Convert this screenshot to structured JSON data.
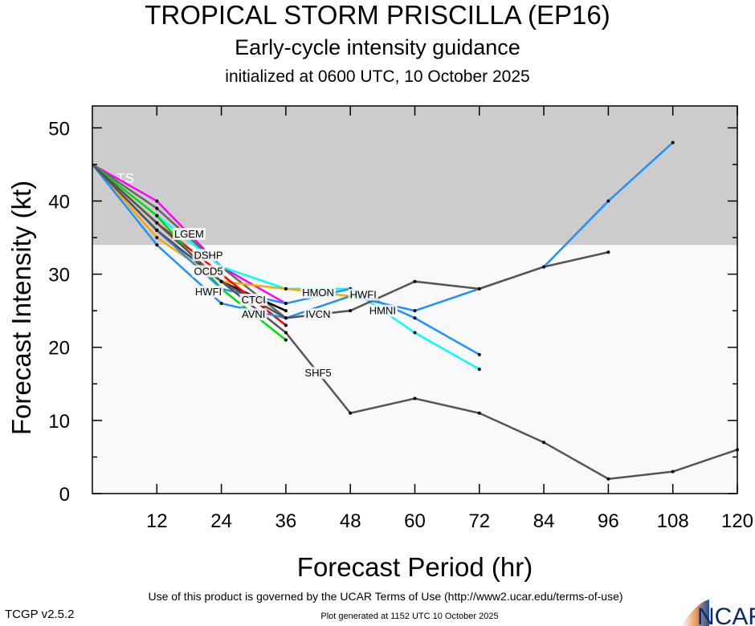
{
  "title": "TROPICAL STORM PRISCILLA (EP16)",
  "subtitle": "Early-cycle intensity guidance",
  "initialized": "initialized at 0600 UTC, 10 October 2025",
  "footer_terms": "Use of this product is governed by the UCAR Terms of Use (http://www2.ucar.edu/terms-of-use)",
  "footer_generated": "Plot generated at 1152 UTC   10 October 2025",
  "version": "TCGP v2.5.2",
  "logo_text": "NCAR",
  "chart_data": {
    "type": "line",
    "xlabel": "Forecast Period (hr)",
    "ylabel": "Forecast Intensity (kt)",
    "xlim": [
      0,
      120
    ],
    "ylim": [
      0,
      53
    ],
    "xticks": [
      12,
      24,
      36,
      48,
      60,
      72,
      84,
      96,
      108,
      120
    ],
    "yticks": [
      0,
      10,
      20,
      30,
      40,
      50
    ],
    "band": {
      "label": "TS",
      "from": 34,
      "to": 53,
      "color": "#cccccc"
    },
    "background": "#f9f9f9",
    "series": [
      {
        "name": "LGEM",
        "color": "#ff00ff",
        "x": [
          0,
          12,
          24,
          36
        ],
        "y": [
          45,
          40,
          31,
          26
        ],
        "label_seg": 1
      },
      {
        "name": "DSHP",
        "color": "#666666",
        "x": [
          0,
          12,
          24,
          36
        ],
        "y": [
          45,
          39,
          31,
          24
        ],
        "label_seg": 1
      },
      {
        "name": "HMNI",
        "color": "#00ffff",
        "x": [
          0,
          12,
          24,
          36,
          48,
          60,
          72
        ],
        "y": [
          45,
          38,
          31,
          28,
          28,
          22,
          17
        ],
        "label_seg": 3
      },
      {
        "name": "OCD5",
        "color": "#000000",
        "x": [
          0,
          12,
          24,
          36
        ],
        "y": [
          45,
          36,
          29,
          25
        ],
        "label_seg": 1
      },
      {
        "name": "HMON",
        "color": "#ffa500",
        "x": [
          0,
          12,
          24,
          36,
          48
        ],
        "y": [
          45,
          35,
          29,
          28,
          27
        ],
        "label_seg": 3
      },
      {
        "name": "CTCI",
        "color": "#ff0000",
        "x": [
          0,
          12,
          24,
          36
        ],
        "y": [
          45,
          37,
          30,
          23
        ],
        "label_seg": 1
      },
      {
        "name": "AVNI",
        "color": "#00dd00",
        "x": [
          0,
          12,
          24,
          36
        ],
        "y": [
          45,
          38,
          28,
          21
        ],
        "label_seg": 1
      },
      {
        "name": "HWFI",
        "color": "#1e90ff",
        "x": [
          0,
          12,
          24,
          36,
          48,
          60,
          72,
          84,
          96,
          108
        ],
        "y": [
          45,
          34,
          26,
          24,
          27,
          25,
          28,
          31,
          40,
          48
        ],
        "label_seg": 1
      },
      {
        "name": "HWFI",
        "color": "#1e90ff",
        "x": [
          0,
          12,
          24,
          36,
          48,
          60,
          72
        ],
        "y": [
          45,
          36,
          28,
          26,
          28,
          24,
          19
        ],
        "label_seg": 3
      },
      {
        "name": "IVCN",
        "color": "#555555",
        "x": [
          0,
          12,
          24,
          36,
          48,
          60,
          72,
          84,
          96
        ],
        "y": [
          45,
          36,
          29,
          24,
          25,
          29,
          28,
          31,
          33
        ],
        "label_seg": 3
      },
      {
        "name": "SHF5",
        "color": "#555555",
        "x": [
          0,
          12,
          24,
          36,
          48,
          60,
          72,
          84,
          96,
          108,
          120
        ],
        "y": [
          45,
          37,
          29,
          22,
          11,
          13,
          11,
          7,
          2,
          3,
          6
        ],
        "label_seg": 3
      }
    ]
  }
}
